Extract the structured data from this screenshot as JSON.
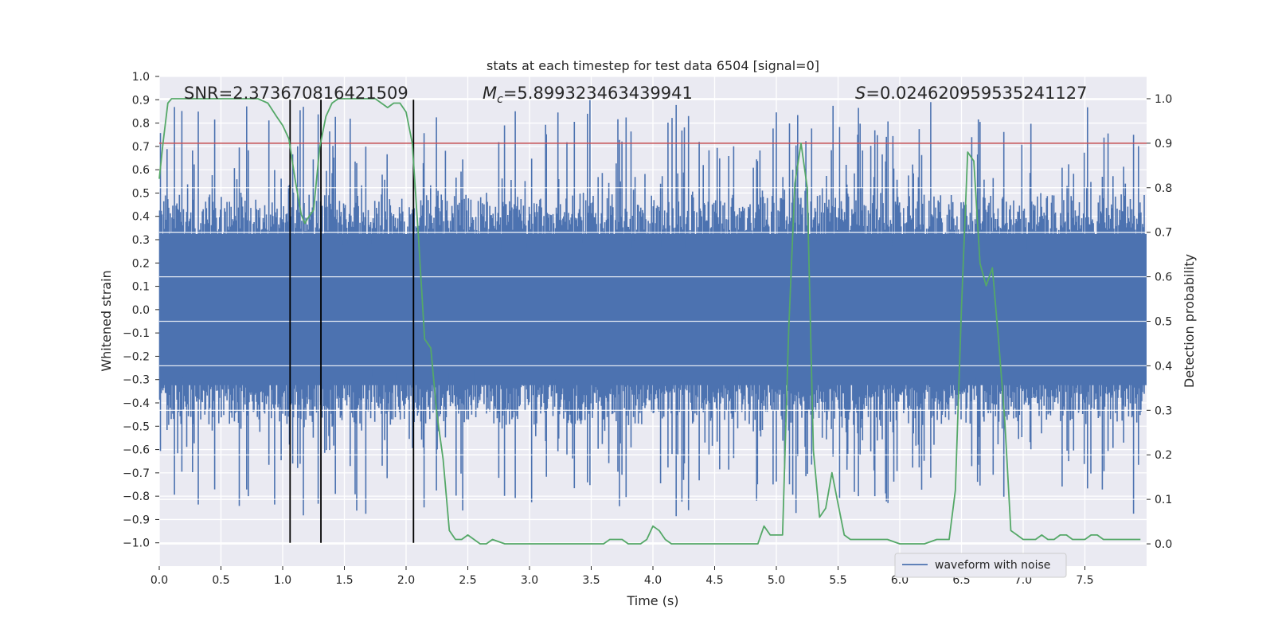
{
  "chart_data": {
    "type": "line",
    "title": "stats at each timestep for test data 6504 [signal=0]",
    "xlabel": "Time (s)",
    "ylabel": "Whitened strain",
    "ylabel_right": "Detection probability",
    "xlim": [
      0.0,
      8.0
    ],
    "ylim": [
      -1.1,
      1.0
    ],
    "ylim_right": [
      -0.05,
      1.05
    ],
    "x_ticks": [
      "0.0",
      "0.5",
      "1.0",
      "1.5",
      "2.0",
      "2.5",
      "3.0",
      "3.5",
      "4.0",
      "4.5",
      "5.0",
      "5.5",
      "6.0",
      "6.5",
      "7.0",
      "7.5"
    ],
    "y_ticks": [
      "1.0",
      "0.9",
      "0.8",
      "0.7",
      "0.6",
      "0.5",
      "0.4",
      "0.3",
      "0.2",
      "0.1",
      "0.0",
      "−0.1",
      "−0.2",
      "−0.3",
      "−0.4",
      "−0.5",
      "−0.6",
      "−0.7",
      "−0.8",
      "−0.9",
      "−1.0"
    ],
    "y_ticks_right": [
      "1.0",
      "0.9",
      "0.8",
      "0.7",
      "0.6",
      "0.5",
      "0.4",
      "0.3",
      "0.2",
      "0.1",
      "0.0"
    ],
    "annotations": {
      "snr": "SNR=2.373670816421509",
      "mc_symbol": "M",
      "mc_sub": "c",
      "mc_value": "=5.899323463439941",
      "s_symbol": "S",
      "s_value": "=0.024620959535241127"
    },
    "threshold": 0.9,
    "vertical_markers": [
      1.06,
      1.31,
      2.06
    ],
    "vertical_marker_range": [
      -1.0,
      0.9
    ],
    "strain_envelope": {
      "typical_amplitude": 0.45,
      "peak_amplitude": 0.9,
      "samples": 1200
    },
    "series": [
      {
        "name": "waveform with noise",
        "axis": "left",
        "color": "#4c72b0"
      },
      {
        "name": "detection probability",
        "axis": "right",
        "color": "#55a868",
        "x": [
          0.0,
          0.03,
          0.07,
          0.1,
          0.15,
          0.2,
          0.3,
          0.4,
          0.5,
          0.6,
          0.7,
          0.8,
          0.88,
          0.95,
          1.0,
          1.05,
          1.1,
          1.15,
          1.18,
          1.2,
          1.25,
          1.3,
          1.35,
          1.4,
          1.45,
          1.5,
          1.55,
          1.6,
          1.65,
          1.7,
          1.75,
          1.8,
          1.85,
          1.9,
          1.95,
          2.0,
          2.05,
          2.1,
          2.15,
          2.2,
          2.25,
          2.3,
          2.35,
          2.4,
          2.45,
          2.5,
          2.55,
          2.6,
          2.65,
          2.7,
          2.8,
          2.85,
          2.9,
          3.0,
          3.1,
          3.2,
          3.3,
          3.4,
          3.5,
          3.6,
          3.65,
          3.7,
          3.75,
          3.8,
          3.85,
          3.9,
          3.95,
          4.0,
          4.05,
          4.1,
          4.15,
          4.2,
          4.3,
          4.4,
          4.5,
          4.6,
          4.7,
          4.8,
          4.85,
          4.9,
          4.95,
          5.0,
          5.05,
          5.1,
          5.15,
          5.2,
          5.25,
          5.3,
          5.35,
          5.4,
          5.45,
          5.5,
          5.55,
          5.6,
          5.7,
          5.8,
          5.9,
          6.0,
          6.1,
          6.2,
          6.3,
          6.35,
          6.4,
          6.45,
          6.5,
          6.55,
          6.6,
          6.65,
          6.7,
          6.75,
          6.8,
          6.85,
          6.9,
          6.95,
          7.0,
          7.1,
          7.15,
          7.2,
          7.25,
          7.3,
          7.35,
          7.4,
          7.45,
          7.5,
          7.55,
          7.6,
          7.65,
          7.7,
          7.75,
          7.8,
          7.85,
          7.9,
          7.95
        ],
        "values": [
          0.82,
          0.9,
          0.99,
          1.0,
          1.0,
          1.0,
          1.0,
          1.0,
          1.0,
          1.0,
          1.0,
          1.0,
          0.99,
          0.96,
          0.94,
          0.91,
          0.82,
          0.74,
          0.72,
          0.73,
          0.75,
          0.89,
          0.96,
          0.99,
          1.0,
          1.0,
          1.0,
          1.0,
          1.0,
          1.0,
          1.0,
          0.99,
          0.98,
          0.99,
          0.99,
          0.97,
          0.9,
          0.69,
          0.46,
          0.44,
          0.29,
          0.19,
          0.03,
          0.01,
          0.01,
          0.02,
          0.01,
          0.0,
          0.0,
          0.01,
          0.0,
          0.0,
          0.0,
          0.0,
          0.0,
          0.0,
          0.0,
          0.0,
          0.0,
          0.0,
          0.01,
          0.01,
          0.01,
          0.0,
          0.0,
          0.0,
          0.01,
          0.04,
          0.03,
          0.01,
          0.0,
          0.0,
          0.0,
          0.0,
          0.0,
          0.0,
          0.0,
          0.0,
          0.0,
          0.04,
          0.02,
          0.02,
          0.02,
          0.48,
          0.81,
          0.9,
          0.8,
          0.21,
          0.06,
          0.08,
          0.16,
          0.09,
          0.02,
          0.01,
          0.01,
          0.01,
          0.01,
          0.0,
          0.0,
          0.0,
          0.01,
          0.01,
          0.01,
          0.12,
          0.53,
          0.88,
          0.86,
          0.63,
          0.58,
          0.62,
          0.46,
          0.28,
          0.03,
          0.02,
          0.01,
          0.01,
          0.02,
          0.01,
          0.01,
          0.02,
          0.02,
          0.01,
          0.01,
          0.01,
          0.02,
          0.02,
          0.01,
          0.01,
          0.01,
          0.01,
          0.01,
          0.01,
          0.01
        ]
      }
    ],
    "legend": {
      "label": "waveform with noise",
      "location": "lower-right"
    },
    "grid": true
  }
}
